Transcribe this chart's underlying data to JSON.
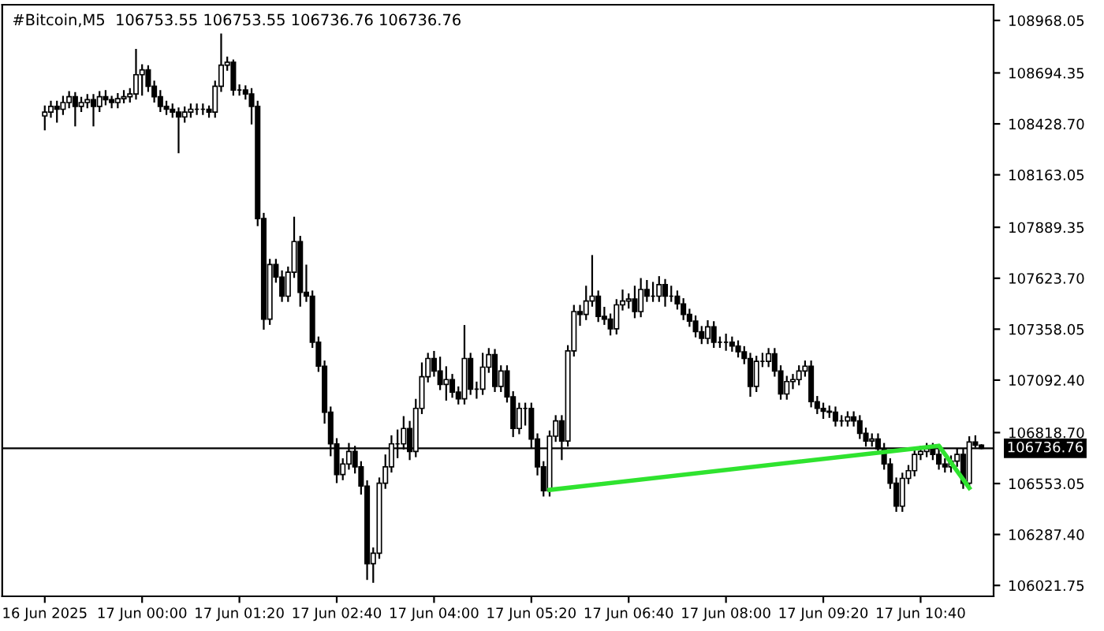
{
  "chart_data": {
    "type": "candlestick",
    "title": "#Bitcoin,M5  106753.55 106753.55 106736.76 106736.76",
    "categories": [
      "16 Jun 2025",
      null,
      null,
      null,
      null,
      null,
      null,
      null,
      null,
      null,
      null,
      null,
      null,
      null,
      null,
      null,
      "17 Jun 00:00",
      null,
      null,
      null,
      null,
      null,
      null,
      null,
      null,
      null,
      null,
      null,
      null,
      null,
      null,
      null,
      "17 Jun 01:20",
      null,
      null,
      null,
      null,
      null,
      null,
      null,
      null,
      null,
      null,
      null,
      null,
      null,
      null,
      null,
      "17 Jun 02:40",
      null,
      null,
      null,
      null,
      null,
      null,
      null,
      null,
      null,
      null,
      null,
      null,
      null,
      null,
      null,
      "17 Jun 04:00",
      null,
      null,
      null,
      null,
      null,
      null,
      null,
      null,
      null,
      null,
      null,
      null,
      null,
      null,
      null,
      "17 Jun 05:20",
      null,
      null,
      null,
      null,
      null,
      null,
      null,
      null,
      null,
      null,
      null,
      null,
      null,
      null,
      null,
      "17 Jun 06:40",
      null,
      null,
      null,
      null,
      null,
      null,
      null,
      null,
      null,
      null,
      null,
      null,
      null,
      null,
      null,
      "17 Jun 08:00",
      null,
      null,
      null,
      null,
      null,
      null,
      null,
      null,
      null,
      null,
      null,
      null,
      null,
      null,
      null,
      "17 Jun 09:20",
      null,
      null,
      null,
      null,
      null,
      null,
      null,
      null,
      null,
      null,
      null,
      null,
      null,
      null,
      null,
      "17 Jun 10:40",
      null,
      null,
      null,
      null,
      null,
      null,
      null,
      null,
      null,
      null
    ],
    "ohlc": [
      [
        108470,
        108520,
        108400,
        108490
      ],
      [
        108490,
        108545,
        108465,
        108520
      ],
      [
        108520,
        108545,
        108440,
        108505
      ],
      [
        108505,
        108570,
        108480,
        108540
      ],
      [
        108540,
        108595,
        108515,
        108570
      ],
      [
        108570,
        108590,
        108420,
        108520
      ],
      [
        108520,
        108565,
        108495,
        108540
      ],
      [
        108540,
        108580,
        108515,
        108555
      ],
      [
        108555,
        108580,
        108420,
        108520
      ],
      [
        108520,
        108595,
        108495,
        108570
      ],
      [
        108570,
        108600,
        108530,
        108555
      ],
      [
        108555,
        108570,
        108515,
        108540
      ],
      [
        108540,
        108585,
        108515,
        108560
      ],
      [
        108560,
        108600,
        108540,
        108570
      ],
      [
        108570,
        108610,
        108545,
        108585
      ],
      [
        108585,
        108815,
        108560,
        108685
      ],
      [
        108685,
        108735,
        108580,
        108710
      ],
      [
        108710,
        108730,
        108600,
        108625
      ],
      [
        108625,
        108650,
        108545,
        108570
      ],
      [
        108570,
        108600,
        108495,
        108520
      ],
      [
        108520,
        108545,
        108480,
        108505
      ],
      [
        108505,
        108530,
        108465,
        108490
      ],
      [
        108490,
        108510,
        108280,
        108465
      ],
      [
        108465,
        108515,
        108440,
        108490
      ],
      [
        108490,
        108530,
        108465,
        108505
      ],
      [
        108505,
        108530,
        108480,
        108505
      ],
      [
        108505,
        108530,
        108480,
        108505
      ],
      [
        108505,
        108520,
        108465,
        108490
      ],
      [
        108490,
        108650,
        108465,
        108625
      ],
      [
        108625,
        108895,
        108600,
        108735
      ],
      [
        108735,
        108775,
        108710,
        108750
      ],
      [
        108750,
        108760,
        108580,
        108605
      ],
      [
        108605,
        108630,
        108580,
        108605
      ],
      [
        108605,
        108625,
        108560,
        108585
      ],
      [
        108585,
        108610,
        108430,
        108520
      ],
      [
        108520,
        108545,
        107900,
        107935
      ],
      [
        107935,
        107960,
        107360,
        107410
      ],
      [
        107410,
        107720,
        107385,
        107695
      ],
      [
        107695,
        107720,
        107605,
        107630
      ],
      [
        107630,
        107660,
        107505,
        107530
      ],
      [
        107530,
        107680,
        107505,
        107655
      ],
      [
        107655,
        107940,
        107630,
        107815
      ],
      [
        107815,
        107840,
        107480,
        107550
      ],
      [
        107550,
        107690,
        107505,
        107530
      ],
      [
        107530,
        107555,
        107265,
        107290
      ],
      [
        107290,
        107315,
        107140,
        107165
      ],
      [
        107165,
        107190,
        106870,
        106925
      ],
      [
        106925,
        106950,
        106700,
        106760
      ],
      [
        106760,
        106785,
        106560,
        106600
      ],
      [
        106600,
        106680,
        106575,
        106655
      ],
      [
        106655,
        106760,
        106630,
        106720
      ],
      [
        106720,
        106745,
        106610,
        106640
      ],
      [
        106640,
        106665,
        106500,
        106540
      ],
      [
        106540,
        106565,
        106055,
        106135
      ],
      [
        106135,
        106215,
        106040,
        106190
      ],
      [
        106190,
        106580,
        106165,
        106555
      ],
      [
        106555,
        106700,
        106530,
        106640
      ],
      [
        106640,
        106800,
        106615,
        106760
      ],
      [
        106760,
        106830,
        106690,
        106760
      ],
      [
        106760,
        106900,
        106735,
        106840
      ],
      [
        106840,
        106875,
        106680,
        106720
      ],
      [
        106720,
        106990,
        106695,
        106945
      ],
      [
        106945,
        107180,
        106920,
        107110
      ],
      [
        107110,
        107230,
        107085,
        107205
      ],
      [
        107205,
        107240,
        107115,
        107140
      ],
      [
        107140,
        107210,
        107045,
        107070
      ],
      [
        107070,
        107160,
        106990,
        107095
      ],
      [
        107095,
        107120,
        107005,
        107030
      ],
      [
        107030,
        107055,
        106970,
        106995
      ],
      [
        106995,
        107375,
        106970,
        107205
      ],
      [
        107205,
        107230,
        107020,
        107045
      ],
      [
        107045,
        107080,
        107000,
        107045
      ],
      [
        107045,
        107230,
        107020,
        107160
      ],
      [
        107160,
        107255,
        107135,
        107225
      ],
      [
        107225,
        107250,
        107035,
        107060
      ],
      [
        107060,
        107165,
        107035,
        107140
      ],
      [
        107140,
        107165,
        106980,
        107005
      ],
      [
        107005,
        107030,
        106800,
        106840
      ],
      [
        106840,
        106970,
        106815,
        106945
      ],
      [
        106945,
        106970,
        106860,
        106945
      ],
      [
        106945,
        106970,
        106740,
        106785
      ],
      [
        106785,
        106810,
        106600,
        106640
      ],
      [
        106640,
        106665,
        106490,
        106515
      ],
      [
        106515,
        106825,
        106490,
        106800
      ],
      [
        106800,
        106905,
        106775,
        106880
      ],
      [
        106880,
        106905,
        106680,
        106775
      ],
      [
        106775,
        107270,
        106750,
        107245
      ],
      [
        107245,
        107480,
        107220,
        107450
      ],
      [
        107450,
        107480,
        107380,
        107435
      ],
      [
        107435,
        107580,
        107410,
        107505
      ],
      [
        107505,
        107740,
        107480,
        107530
      ],
      [
        107530,
        107555,
        107400,
        107425
      ],
      [
        107425,
        107470,
        107385,
        107410
      ],
      [
        107410,
        107435,
        107330,
        107360
      ],
      [
        107360,
        107510,
        107335,
        107485
      ],
      [
        107485,
        107560,
        107460,
        107505
      ],
      [
        107505,
        107540,
        107470,
        107515
      ],
      [
        107515,
        107580,
        107420,
        107450
      ],
      [
        107450,
        107620,
        107425,
        107565
      ],
      [
        107565,
        107610,
        107505,
        107530
      ],
      [
        107530,
        107600,
        107505,
        107530
      ],
      [
        107530,
        107630,
        107505,
        107590
      ],
      [
        107590,
        107615,
        107480,
        107530
      ],
      [
        107530,
        107580,
        107505,
        107530
      ],
      [
        107530,
        107555,
        107465,
        107490
      ],
      [
        107490,
        107515,
        107410,
        107435
      ],
      [
        107435,
        107460,
        107375,
        107400
      ],
      [
        107400,
        107425,
        107320,
        107345
      ],
      [
        107345,
        107370,
        107285,
        107310
      ],
      [
        107310,
        107400,
        107285,
        107370
      ],
      [
        107370,
        107395,
        107265,
        107290
      ],
      [
        107290,
        107315,
        107265,
        107290
      ],
      [
        107290,
        107330,
        107250,
        107290
      ],
      [
        107290,
        107315,
        107245,
        107270
      ],
      [
        107270,
        107295,
        107215,
        107240
      ],
      [
        107240,
        107265,
        107180,
        107205
      ],
      [
        107205,
        107230,
        107010,
        107060
      ],
      [
        107060,
        107215,
        107035,
        107190
      ],
      [
        107190,
        107230,
        107165,
        107190
      ],
      [
        107190,
        107255,
        107165,
        107230
      ],
      [
        107230,
        107255,
        107115,
        107140
      ],
      [
        107140,
        107165,
        106995,
        107020
      ],
      [
        107020,
        107110,
        106995,
        107085
      ],
      [
        107085,
        107120,
        107050,
        107095
      ],
      [
        107095,
        107165,
        107070,
        107140
      ],
      [
        107140,
        107190,
        107115,
        107165
      ],
      [
        107165,
        107190,
        106955,
        106980
      ],
      [
        106980,
        107005,
        106920,
        106945
      ],
      [
        106945,
        106970,
        106895,
        106930
      ],
      [
        106930,
        106955,
        106900,
        106925
      ],
      [
        106925,
        106950,
        106855,
        106880
      ],
      [
        106880,
        106905,
        106855,
        106880
      ],
      [
        106880,
        106925,
        106855,
        106900
      ],
      [
        106900,
        106925,
        106855,
        106880
      ],
      [
        106880,
        106905,
        106790,
        106815
      ],
      [
        106815,
        106840,
        106750,
        106775
      ],
      [
        106775,
        106810,
        106750,
        106785
      ],
      [
        106785,
        106810,
        106710,
        106735
      ],
      [
        106735,
        106760,
        106630,
        106655
      ],
      [
        106655,
        106680,
        106530,
        106555
      ],
      [
        106555,
        106580,
        106410,
        106435
      ],
      [
        106435,
        106605,
        106410,
        106580
      ],
      [
        106580,
        106645,
        106555,
        106620
      ],
      [
        106620,
        106730,
        106595,
        106705
      ],
      [
        106705,
        106745,
        106680,
        106720
      ],
      [
        106720,
        106760,
        106695,
        106735
      ],
      [
        106735,
        106760,
        106680,
        106705
      ],
      [
        106705,
        106730,
        106630,
        106655
      ],
      [
        106655,
        106680,
        106615,
        106640
      ],
      [
        106640,
        106695,
        106615,
        106670
      ],
      [
        106670,
        106730,
        106645,
        106705
      ],
      [
        106705,
        106730,
        106530,
        106555
      ],
      [
        106555,
        106795,
        106530,
        106770
      ],
      [
        106770,
        106800,
        106745,
        106753.55
      ],
      [
        106753.55,
        106753.55,
        106736.76,
        106736.76
      ]
    ],
    "series": [
      {
        "type": "line",
        "color": "#2fe32f",
        "values": [
          null,
          null,
          null,
          null,
          null,
          null,
          null,
          null,
          null,
          null,
          null,
          null,
          null,
          null,
          null,
          null,
          null,
          null,
          null,
          null,
          null,
          null,
          null,
          null,
          null,
          null,
          null,
          null,
          null,
          null,
          null,
          null,
          null,
          null,
          null,
          null,
          null,
          null,
          null,
          null,
          null,
          null,
          null,
          null,
          null,
          null,
          null,
          null,
          null,
          null,
          null,
          null,
          null,
          null,
          null,
          null,
          null,
          null,
          null,
          null,
          null,
          null,
          null,
          null,
          null,
          null,
          null,
          null,
          null,
          null,
          null,
          null,
          null,
          null,
          null,
          null,
          null,
          null,
          null,
          null,
          null,
          null,
          null,
          106520,
          null,
          null,
          null,
          null,
          null,
          null,
          null,
          null,
          null,
          null,
          null,
          null,
          null,
          null,
          null,
          null,
          null,
          null,
          null,
          null,
          null,
          null,
          null,
          null,
          null,
          null,
          null,
          null,
          null,
          null,
          null,
          null,
          null,
          null,
          null,
          null,
          null,
          null,
          null,
          null,
          null,
          null,
          null,
          null,
          null,
          null,
          null,
          null,
          null,
          null,
          null,
          null,
          null,
          null,
          null,
          null,
          null,
          null,
          null,
          null,
          null,
          null,
          null,
          106750,
          null,
          null,
          null,
          null,
          106530,
          null,
          null
        ]
      }
    ],
    "ylim": [
      105965,
      109050
    ],
    "yticks": [
      {
        "value": 106021.75,
        "label": "106021.75"
      },
      {
        "value": 106287.4,
        "label": "106287.40"
      },
      {
        "value": 106553.05,
        "label": "106553.05"
      },
      {
        "value": 106818.7,
        "label": "106818.70"
      },
      {
        "value": 107092.4,
        "label": "107092.40"
      },
      {
        "value": 107358.05,
        "label": "107358.05"
      },
      {
        "value": 107623.7,
        "label": "107623.70"
      },
      {
        "value": 107889.35,
        "label": "107889.35"
      },
      {
        "value": 108163.05,
        "label": "108163.05"
      },
      {
        "value": 108428.7,
        "label": "108428.70"
      },
      {
        "value": 108694.35,
        "label": "108694.35"
      },
      {
        "value": 108968.05,
        "label": "108968.05"
      }
    ],
    "ref_lines": [
      {
        "axis": "y",
        "value": 106736.76,
        "label": "106736.76",
        "color": "#000000"
      }
    ],
    "grid": false,
    "legend": false
  }
}
